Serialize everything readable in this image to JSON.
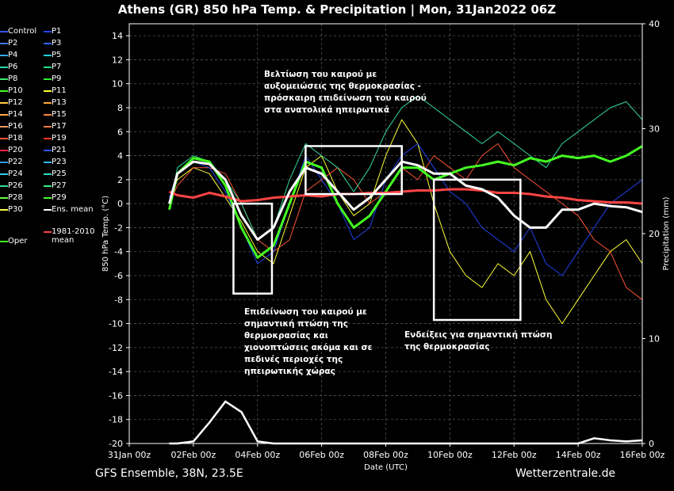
{
  "title": "Athens  (GR)  850 hPa Temp. & Precipitation | Mon, 31Jan2022 06Z",
  "footer": {
    "left": "GFS Ensemble, 38N, 23.5E",
    "right": "Wetterzentrale.de"
  },
  "legend": [
    {
      "label": "Control",
      "color": "#3355ff"
    },
    {
      "label": "P1",
      "color": "#2244ee"
    },
    {
      "label": "P2",
      "color": "#4477ff"
    },
    {
      "label": "P3",
      "color": "#3366ff"
    },
    {
      "label": "P4",
      "color": "#33aaff"
    },
    {
      "label": "P5",
      "color": "#22ccdd"
    },
    {
      "label": "P6",
      "color": "#22ddaa"
    },
    {
      "label": "P7",
      "color": "#22dd88"
    },
    {
      "label": "P8",
      "color": "#33ee66"
    },
    {
      "label": "P9",
      "color": "#33ee33"
    },
    {
      "label": "P10",
      "color": "#44ff22"
    },
    {
      "label": "P11",
      "color": "#ffff33"
    },
    {
      "label": "P12",
      "color": "#ffcc44"
    },
    {
      "label": "P13",
      "color": "#ffaa33"
    },
    {
      "label": "P14",
      "color": "#ffaa44"
    },
    {
      "label": "P15",
      "color": "#ff8833"
    },
    {
      "label": "P16",
      "color": "#ff9966"
    },
    {
      "label": "P17",
      "color": "#ff7744"
    },
    {
      "label": "P18",
      "color": "#ff5533"
    },
    {
      "label": "P19",
      "color": "#ff3322"
    },
    {
      "label": "P20",
      "color": "#ff2244"
    },
    {
      "label": "P21",
      "color": "#3355ff"
    },
    {
      "label": "P22",
      "color": "#3399ff"
    },
    {
      "label": "P23",
      "color": "#33bbff"
    },
    {
      "label": "P24",
      "color": "#33ccee"
    },
    {
      "label": "P25",
      "color": "#33ddbb"
    },
    {
      "label": "P26",
      "color": "#33dd99"
    },
    {
      "label": "P27",
      "color": "#33ee77"
    },
    {
      "label": "P28",
      "color": "#66ff44"
    },
    {
      "label": "P29",
      "color": "#44ff33"
    },
    {
      "label": "P30",
      "color": "#ffff44"
    },
    {
      "label": "Ens. mean",
      "color": "#ffffff"
    },
    {
      "label": "Oper",
      "color": "#44ff22"
    },
    {
      "label": "1981-2010 mean",
      "color": "#ff4444"
    }
  ],
  "annotations": {
    "top": [
      "Βελτίωση του καιρού με",
      "αυξομειώσεις της θερμοκρασίας -",
      "πρόσκαιρη επιδείνωση του καιρού",
      "στα ανατολικά ηπειρωτικά"
    ],
    "left": [
      "Επιδείνωση του καιρού με",
      "σημαντική πτώση της",
      "θερμοκρασίας και",
      "χιονοπτώσεις ακόμα και σε",
      "πεδινές περιοχές της",
      "ηπειρωτικής χώρας"
    ],
    "right": [
      "Ενδείξεις για σημαντική πτώση",
      "της θερμοκρασίας"
    ]
  },
  "chart_data": {
    "type": "line",
    "title": "Athens  (GR)  850 hPa Temp. & Precipitation | Mon, 31Jan2022 06Z",
    "xlabel": "Date (UTC)",
    "ylabel": "850 hPa Temp. (°C)",
    "y2label": "Precipitation (mm)",
    "xticks": [
      "31Jan 00z",
      "02Feb 00z",
      "04Feb 00z",
      "06Feb 00z",
      "08Feb 00z",
      "10Feb 00z",
      "12Feb 00z",
      "14Feb 00z",
      "16Feb 00z"
    ],
    "yticks": [
      14,
      12,
      10,
      8,
      6,
      4,
      2,
      0,
      -2,
      -4,
      -6,
      -8,
      -10,
      -12,
      -14,
      -16,
      -18,
      -20
    ],
    "y2ticks": [
      40,
      30,
      20,
      10,
      0
    ],
    "ylim": [
      -20,
      15
    ],
    "y2lim": [
      0,
      40
    ],
    "xlim_days": [
      0,
      16
    ],
    "grid": true,
    "series": [
      {
        "name": "Ens. mean",
        "color": "#ffffff",
        "points": [
          [
            1.25,
            0
          ],
          [
            1.5,
            2.5
          ],
          [
            2,
            3.5
          ],
          [
            2.5,
            3.3
          ],
          [
            3,
            2
          ],
          [
            3.5,
            -1
          ],
          [
            4,
            -3
          ],
          [
            4.5,
            -2
          ],
          [
            5,
            1
          ],
          [
            5.5,
            3
          ],
          [
            6,
            2.5
          ],
          [
            6.5,
            1
          ],
          [
            7,
            -0.5
          ],
          [
            7.5,
            0.5
          ],
          [
            8,
            2
          ],
          [
            8.5,
            3.5
          ],
          [
            9,
            3.2
          ],
          [
            9.5,
            2.5
          ],
          [
            10,
            2.5
          ],
          [
            10.5,
            1.5
          ],
          [
            11,
            1.2
          ],
          [
            11.5,
            0.5
          ],
          [
            12,
            -1
          ],
          [
            12.5,
            -2
          ],
          [
            13,
            -2
          ],
          [
            13.5,
            -0.5
          ],
          [
            14,
            -0.5
          ],
          [
            14.5,
            0
          ],
          [
            15,
            -0.2
          ],
          [
            15.5,
            -0.3
          ],
          [
            16,
            -0.7
          ]
        ]
      },
      {
        "name": "Oper",
        "color": "#44ff22",
        "points": [
          [
            1.25,
            -0.5
          ],
          [
            1.5,
            2.5
          ],
          [
            2,
            3.8
          ],
          [
            2.5,
            3.5
          ],
          [
            3,
            1.5
          ],
          [
            3.5,
            -2
          ],
          [
            4,
            -4.5
          ],
          [
            4.5,
            -3.5
          ],
          [
            5,
            0
          ],
          [
            5.5,
            3.5
          ],
          [
            6,
            3
          ],
          [
            6.5,
            0
          ],
          [
            7,
            -2
          ],
          [
            7.5,
            -1
          ],
          [
            8,
            1
          ],
          [
            8.5,
            3
          ],
          [
            9,
            3
          ],
          [
            9.5,
            2
          ],
          [
            10,
            2.5
          ],
          [
            10.5,
            3
          ],
          [
            11,
            3.2
          ],
          [
            11.5,
            3.5
          ],
          [
            12,
            3.2
          ],
          [
            12.5,
            3.8
          ],
          [
            13,
            3.5
          ],
          [
            13.5,
            4
          ],
          [
            14,
            3.8
          ],
          [
            14.5,
            4
          ],
          [
            15,
            3.5
          ],
          [
            15.5,
            4
          ],
          [
            16,
            4.8
          ]
        ]
      },
      {
        "name": "1981-2010 mean",
        "color": "#ff4444",
        "points": [
          [
            1.25,
            1.0
          ],
          [
            1.5,
            0.7
          ],
          [
            2,
            0.5
          ],
          [
            2.5,
            0.9
          ],
          [
            3,
            0.6
          ],
          [
            3.5,
            0.2
          ],
          [
            4,
            0.3
          ],
          [
            4.5,
            0.5
          ],
          [
            5,
            0.6
          ],
          [
            5.5,
            0.7
          ],
          [
            6,
            0.6
          ],
          [
            6.5,
            0.8
          ],
          [
            7,
            0.8
          ],
          [
            7.5,
            0.9
          ],
          [
            8,
            0.9
          ],
          [
            8.5,
            1.0
          ],
          [
            9,
            1.1
          ],
          [
            9.5,
            1.1
          ],
          [
            10,
            1.2
          ],
          [
            10.5,
            1.2
          ],
          [
            11,
            1.1
          ],
          [
            11.5,
            0.9
          ],
          [
            12,
            0.9
          ],
          [
            12.5,
            0.8
          ],
          [
            13,
            0.6
          ],
          [
            13.5,
            0.5
          ],
          [
            14,
            0.3
          ],
          [
            14.5,
            0.2
          ],
          [
            15,
            0.1
          ],
          [
            15.5,
            0.1
          ],
          [
            16,
            0.0
          ]
        ]
      },
      {
        "name": "P11",
        "color": "#ffff33",
        "points": [
          [
            1.25,
            0
          ],
          [
            1.5,
            2
          ],
          [
            2,
            3
          ],
          [
            2.5,
            2.5
          ],
          [
            3,
            0.5
          ],
          [
            3.5,
            -1.5
          ],
          [
            4,
            -4
          ],
          [
            4.5,
            -5
          ],
          [
            5,
            -1
          ],
          [
            5.5,
            3
          ],
          [
            6,
            4
          ],
          [
            6.5,
            1
          ],
          [
            7,
            -1
          ],
          [
            7.5,
            0
          ],
          [
            8,
            4
          ],
          [
            8.5,
            7
          ],
          [
            9,
            5
          ],
          [
            9.5,
            0
          ],
          [
            10,
            -4
          ],
          [
            10.5,
            -6
          ],
          [
            11,
            -7
          ],
          [
            11.5,
            -5
          ],
          [
            12,
            -6
          ],
          [
            12.5,
            -4
          ],
          [
            13,
            -8
          ],
          [
            13.5,
            -10
          ],
          [
            14,
            -8
          ],
          [
            14.5,
            -6
          ],
          [
            15,
            -4
          ],
          [
            15.5,
            -3
          ],
          [
            16,
            -5
          ]
        ]
      },
      {
        "name": "P18",
        "color": "#ff5533",
        "points": [
          [
            1.25,
            0
          ],
          [
            1.5,
            1.5
          ],
          [
            2,
            3
          ],
          [
            2.5,
            3
          ],
          [
            3,
            2.5
          ],
          [
            3.5,
            0
          ],
          [
            4,
            -3
          ],
          [
            4.5,
            -4
          ],
          [
            5,
            -3
          ],
          [
            5.5,
            1
          ],
          [
            6,
            2
          ],
          [
            6.5,
            3
          ],
          [
            7,
            2
          ],
          [
            7.5,
            0
          ],
          [
            8,
            1
          ],
          [
            8.5,
            3
          ],
          [
            9,
            2
          ],
          [
            9.5,
            4
          ],
          [
            10,
            3
          ],
          [
            10.5,
            2
          ],
          [
            11,
            4
          ],
          [
            11.5,
            5
          ],
          [
            12,
            3
          ],
          [
            12.5,
            2
          ],
          [
            13,
            1
          ],
          [
            13.5,
            0
          ],
          [
            14,
            -1
          ],
          [
            14.5,
            -3
          ],
          [
            15,
            -4
          ],
          [
            15.5,
            -7
          ],
          [
            16,
            -8
          ]
        ]
      },
      {
        "name": "P1",
        "color": "#2244ee",
        "points": [
          [
            1.25,
            0.5
          ],
          [
            1.5,
            2.5
          ],
          [
            2,
            3.5
          ],
          [
            2.5,
            3
          ],
          [
            3,
            1
          ],
          [
            3.5,
            -2
          ],
          [
            4,
            -5
          ],
          [
            4.5,
            -4
          ],
          [
            5,
            0
          ],
          [
            5.5,
            4
          ],
          [
            6,
            2
          ],
          [
            6.5,
            0
          ],
          [
            7,
            -3
          ],
          [
            7.5,
            -2
          ],
          [
            8,
            2
          ],
          [
            8.5,
            4
          ],
          [
            9,
            5
          ],
          [
            9.5,
            3
          ],
          [
            10,
            1
          ],
          [
            10.5,
            0
          ],
          [
            11,
            -2
          ],
          [
            11.5,
            -3
          ],
          [
            12,
            -4
          ],
          [
            12.5,
            -2
          ],
          [
            13,
            -5
          ],
          [
            13.5,
            -6
          ],
          [
            14,
            -4
          ],
          [
            14.5,
            -2
          ],
          [
            15,
            0
          ],
          [
            15.5,
            1
          ],
          [
            16,
            2
          ]
        ]
      },
      {
        "name": "P26",
        "color": "#33dd99",
        "points": [
          [
            1.25,
            -0.5
          ],
          [
            1.5,
            3
          ],
          [
            2,
            4
          ],
          [
            2.5,
            3.5
          ],
          [
            3,
            2
          ],
          [
            3.5,
            0
          ],
          [
            4,
            -3
          ],
          [
            4.5,
            -2
          ],
          [
            5,
            2
          ],
          [
            5.5,
            5
          ],
          [
            6,
            4
          ],
          [
            6.5,
            3
          ],
          [
            7,
            1
          ],
          [
            7.5,
            3
          ],
          [
            8,
            6
          ],
          [
            8.5,
            8
          ],
          [
            9,
            9
          ],
          [
            9.5,
            8
          ],
          [
            10,
            7
          ],
          [
            10.5,
            6
          ],
          [
            11,
            5
          ],
          [
            11.5,
            6
          ],
          [
            12,
            5
          ],
          [
            12.5,
            4
          ],
          [
            13,
            3
          ],
          [
            13.5,
            5
          ],
          [
            14,
            6
          ],
          [
            14.5,
            7
          ],
          [
            15,
            8
          ],
          [
            15.5,
            8.5
          ],
          [
            16,
            7
          ]
        ]
      }
    ],
    "precipitation": {
      "name": "Ens. mean",
      "points": [
        [
          1.25,
          0
        ],
        [
          1.5,
          0
        ],
        [
          2,
          0.2
        ],
        [
          2.5,
          2
        ],
        [
          3,
          4
        ],
        [
          3.5,
          3
        ],
        [
          4,
          0.2
        ],
        [
          4.5,
          0
        ],
        [
          5,
          0
        ],
        [
          6,
          0
        ],
        [
          7,
          0
        ],
        [
          8,
          0
        ],
        [
          9,
          0
        ],
        [
          10,
          0
        ],
        [
          11,
          0
        ],
        [
          12,
          0
        ],
        [
          13,
          0
        ],
        [
          14,
          0
        ],
        [
          14.5,
          0.5
        ],
        [
          15,
          0.3
        ],
        [
          15.5,
          0.2
        ],
        [
          16,
          0.3
        ]
      ]
    },
    "boxes": [
      {
        "x0": 3.25,
        "x1": 4.45,
        "y0": 0,
        "y1": -7.5
      },
      {
        "x0": 5.5,
        "x1": 8.5,
        "y0": 4.8,
        "y1": 0.8
      },
      {
        "x0": 9.5,
        "x1": 12.2,
        "y0": 2,
        "y1": -9.7
      }
    ]
  }
}
